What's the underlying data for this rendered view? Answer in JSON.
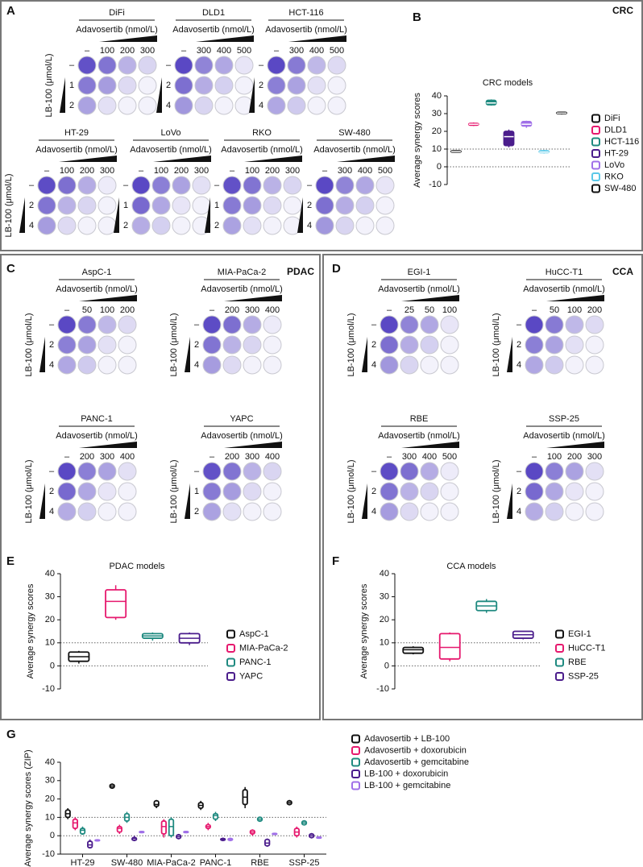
{
  "panel_letters": [
    "A",
    "B",
    "C",
    "D",
    "E",
    "F",
    "G"
  ],
  "panel_tags": [
    "CRC",
    "PDAC",
    "CCA"
  ],
  "plates": [
    {
      "name": "DiFi",
      "drug": "Adavosertib (nmol/L)",
      "doses": [
        "–",
        "100",
        "200",
        "300"
      ],
      "rows": [
        "–",
        "1",
        "2"
      ],
      "ylabel": "LB-100 (μmol/L)"
    },
    {
      "name": "DLD1",
      "drug": "Adavosertib (nmol/L)",
      "doses": [
        "–",
        "300",
        "400",
        "500"
      ],
      "rows": [
        "–",
        "2",
        "4"
      ]
    },
    {
      "name": "HCT-116",
      "drug": "Adavosertib (nmol/L)",
      "doses": [
        "–",
        "300",
        "400",
        "500"
      ],
      "rows": [
        "–",
        "2",
        "4"
      ]
    },
    {
      "name": "HT-29",
      "drug": "Adavosertib (nmol/L)",
      "doses": [
        "–",
        "100",
        "200",
        "300"
      ],
      "rows": [
        "–",
        "2",
        "4"
      ],
      "ylabel": "LB-100 (μmol/L)"
    },
    {
      "name": "LoVo",
      "drug": "Adavosertib (nmol/L)",
      "doses": [
        "–",
        "100",
        "200",
        "300"
      ],
      "rows": [
        "–",
        "1",
        "2"
      ]
    },
    {
      "name": "RKO",
      "drug": "Adavosertib (nmol/L)",
      "doses": [
        "–",
        "100",
        "200",
        "300"
      ],
      "rows": [
        "–",
        "1",
        "2"
      ]
    },
    {
      "name": "SW-480",
      "drug": "Adavosertib (nmol/L)",
      "doses": [
        "–",
        "300",
        "400",
        "500"
      ],
      "rows": [
        "–",
        "2",
        "4"
      ]
    },
    {
      "name": "AspC-1",
      "drug": "Adavosertib (nmol/L)",
      "doses": [
        "–",
        "50",
        "100",
        "200"
      ],
      "rows": [
        "–",
        "2",
        "4"
      ],
      "ylabel": "LB-100 (μmol/L)"
    },
    {
      "name": "MIA-PaCa-2",
      "drug": "Adavosertib (nmol/L)",
      "doses": [
        "–",
        "200",
        "300",
        "400"
      ],
      "rows": [
        "–",
        "2",
        "4"
      ],
      "ylabel": "LB-100 (μmol/L)"
    },
    {
      "name": "PANC-1",
      "drug": "Adavosertib (nmol/L)",
      "doses": [
        "–",
        "200",
        "300",
        "400"
      ],
      "rows": [
        "–",
        "2",
        "4"
      ],
      "ylabel": "LB-100 (μmol/L)"
    },
    {
      "name": "YAPC",
      "drug": "Adavosertib (nmol/L)",
      "doses": [
        "–",
        "200",
        "300",
        "400"
      ],
      "rows": [
        "–",
        "1",
        "2"
      ],
      "ylabel": "LB-100 (μmol/L)"
    },
    {
      "name": "EGI-1",
      "drug": "Adavosertib (nmol/L)",
      "doses": [
        "–",
        "25",
        "50",
        "100"
      ],
      "rows": [
        "–",
        "2",
        "4"
      ],
      "ylabel": "LB-100 (μmol/L)"
    },
    {
      "name": "HuCC-T1",
      "drug": "Adavosertib (nmol/L)",
      "doses": [
        "–",
        "50",
        "100",
        "200"
      ],
      "rows": [
        "–",
        "2",
        "4"
      ],
      "ylabel": "LB-100 (μmol/L)"
    },
    {
      "name": "RBE",
      "drug": "Adavosertib (nmol/L)",
      "doses": [
        "–",
        "300",
        "400",
        "500"
      ],
      "rows": [
        "–",
        "2",
        "4"
      ],
      "ylabel": "LB-100 (μmol/L)"
    },
    {
      "name": "SSP-25",
      "drug": "Adavosertib (nmol/L)",
      "doses": [
        "–",
        "100",
        "200",
        "300"
      ],
      "rows": [
        "–",
        "2",
        "4"
      ],
      "ylabel": "LB-100 (μmol/L)"
    }
  ],
  "chart_data": [
    {
      "type": "box",
      "title": "CRC models",
      "ylabel": "Average synergy scores",
      "box_style": "filled",
      "ylim": [
        -10,
        40
      ],
      "yticks": [
        -10,
        0,
        10,
        20,
        30,
        40
      ],
      "hlines": [
        0,
        10
      ],
      "legend": "right",
      "series": [
        {
          "name": "DiFi",
          "color": "#111111",
          "values": [
            8,
            8.3,
            8.6,
            9,
            9.2
          ]
        },
        {
          "name": "DLD1",
          "color": "#e6196e",
          "values": [
            23,
            23.5,
            24,
            24.5,
            25
          ]
        },
        {
          "name": "HCT-116",
          "color": "#1f8a80",
          "values": [
            34.5,
            35,
            36,
            37.5,
            38
          ]
        },
        {
          "name": "HT-29",
          "color": "#4b1d8c",
          "values": [
            11,
            12,
            17,
            20,
            21
          ]
        },
        {
          "name": "LoVo",
          "color": "#a070e8",
          "values": [
            22,
            23,
            24,
            25.5,
            26
          ]
        },
        {
          "name": "RKO",
          "color": "#5bc8e8",
          "values": [
            7.5,
            8,
            8.3,
            9,
            9.5
          ]
        },
        {
          "name": "SW-480",
          "color": "#111111",
          "values": [
            29.5,
            30,
            30.3,
            30.7,
            31
          ]
        }
      ]
    },
    {
      "type": "box",
      "title": "PDAC models",
      "ylabel": "Average synergy scores",
      "box_style": "outline",
      "ylim": [
        -10,
        40
      ],
      "yticks": [
        -10,
        0,
        10,
        20,
        30,
        40
      ],
      "hlines": [
        0,
        10
      ],
      "legend": "right",
      "series": [
        {
          "name": "AspC-1",
          "color": "#111111",
          "values": [
            1,
            2,
            4,
            6,
            6.5
          ]
        },
        {
          "name": "MIA-PaCa-2",
          "color": "#e6196e",
          "values": [
            20,
            21,
            28,
            33,
            35
          ]
        },
        {
          "name": "PANC-1",
          "color": "#1f8a80",
          "values": [
            11,
            12,
            13,
            14,
            14.5
          ]
        },
        {
          "name": "YAPC",
          "color": "#4b1d8c",
          "values": [
            9,
            10,
            12,
            14,
            14.5
          ]
        }
      ]
    },
    {
      "type": "box",
      "title": "CCA models",
      "ylabel": "Average synergy scores",
      "box_style": "outline",
      "ylim": [
        -10,
        40
      ],
      "yticks": [
        -10,
        0,
        10,
        20,
        30,
        40
      ],
      "hlines": [
        0,
        10
      ],
      "legend": "right",
      "series": [
        {
          "name": "EGI-1",
          "color": "#111111",
          "values": [
            5,
            5.5,
            7,
            8,
            8.5
          ]
        },
        {
          "name": "HuCC-T1",
          "color": "#e6196e",
          "values": [
            2,
            3,
            8,
            14,
            14.5
          ]
        },
        {
          "name": "RBE",
          "color": "#1f8a80",
          "values": [
            23,
            24,
            26,
            28,
            29
          ]
        },
        {
          "name": "SSP-25",
          "color": "#4b1d8c",
          "values": [
            11.5,
            12,
            13.5,
            15,
            15
          ]
        }
      ]
    },
    {
      "type": "box",
      "ylabel": "Average synergy scores (ZIP)",
      "box_style": "outline",
      "ylim": [
        -10,
        40
      ],
      "yticks": [
        -10,
        0,
        10,
        20,
        30,
        40
      ],
      "hlines": [
        0,
        10
      ],
      "legend": "right",
      "categories": [
        "HT-29",
        "SW-480",
        "MIA-PaCa-2",
        "PANC-1",
        "RBE",
        "SSP-25"
      ],
      "series": [
        {
          "name": "Adavosertib + LB-100",
          "color": "#111111",
          "values": [
            [
              9,
              10,
              12,
              14,
              15
            ],
            [
              25.5,
              26,
              27,
              28,
              28.5
            ],
            [
              15,
              16,
              17,
              19,
              19.5
            ],
            [
              14,
              15,
              16.5,
              18,
              19
            ],
            [
              15,
              17,
              21,
              25,
              26.5
            ],
            [
              16.5,
              17,
              18,
              19,
              19.5
            ]
          ]
        },
        {
          "name": "Adavosertib + doxorubicin",
          "color": "#e6196e",
          "values": [
            [
              3,
              4,
              7,
              9,
              10
            ],
            [
              1,
              2,
              4,
              5,
              6
            ],
            [
              -1,
              1,
              5,
              8,
              9
            ],
            [
              3,
              4,
              5,
              6,
              7
            ],
            [
              0,
              1,
              2,
              3,
              3.5
            ],
            [
              -1,
              0,
              2,
              4,
              5
            ]
          ]
        },
        {
          "name": "Adavosertib + gemcitabine",
          "color": "#1f8a80",
          "values": [
            [
              0.5,
              1,
              3,
              4,
              5
            ],
            [
              7,
              8,
              10,
              12,
              13
            ],
            [
              -1,
              0,
              5,
              9,
              10
            ],
            [
              8,
              9,
              11,
              12,
              13
            ],
            [
              7.5,
              8,
              9,
              10,
              10.5
            ],
            [
              5.5,
              6,
              7,
              8,
              8.5
            ]
          ]
        },
        {
          "name": "LB-100 + doxorubicin",
          "color": "#4b1d8c",
          "values": [
            [
              -7,
              -6.5,
              -5,
              -3,
              -2
            ],
            [
              -3,
              -2.5,
              -1.5,
              -1,
              0
            ],
            [
              -2,
              -1.5,
              -0.5,
              0.5,
              1
            ],
            [
              -3,
              -2.5,
              -2,
              -1.5,
              -1
            ],
            [
              -6,
              -5.5,
              -4,
              -2,
              -1.5
            ],
            [
              -1.5,
              -1,
              0,
              1,
              1.5
            ]
          ]
        },
        {
          "name": "LB-100 + gemcitabine",
          "color": "#a070e8",
          "values": [
            [
              -3,
              -2.8,
              -2.5,
              -2.2,
              -2
            ],
            [
              1.5,
              1.7,
              2,
              2.3,
              2.5
            ],
            [
              1.5,
              1.7,
              2,
              2.3,
              2.5
            ],
            [
              -3,
              -2.5,
              -2,
              -1.5,
              -1
            ],
            [
              0.5,
              0.7,
              1,
              1.3,
              1.5
            ],
            [
              -1.5,
              -1.3,
              -1,
              -0.7,
              -0.5
            ]
          ]
        }
      ]
    }
  ]
}
